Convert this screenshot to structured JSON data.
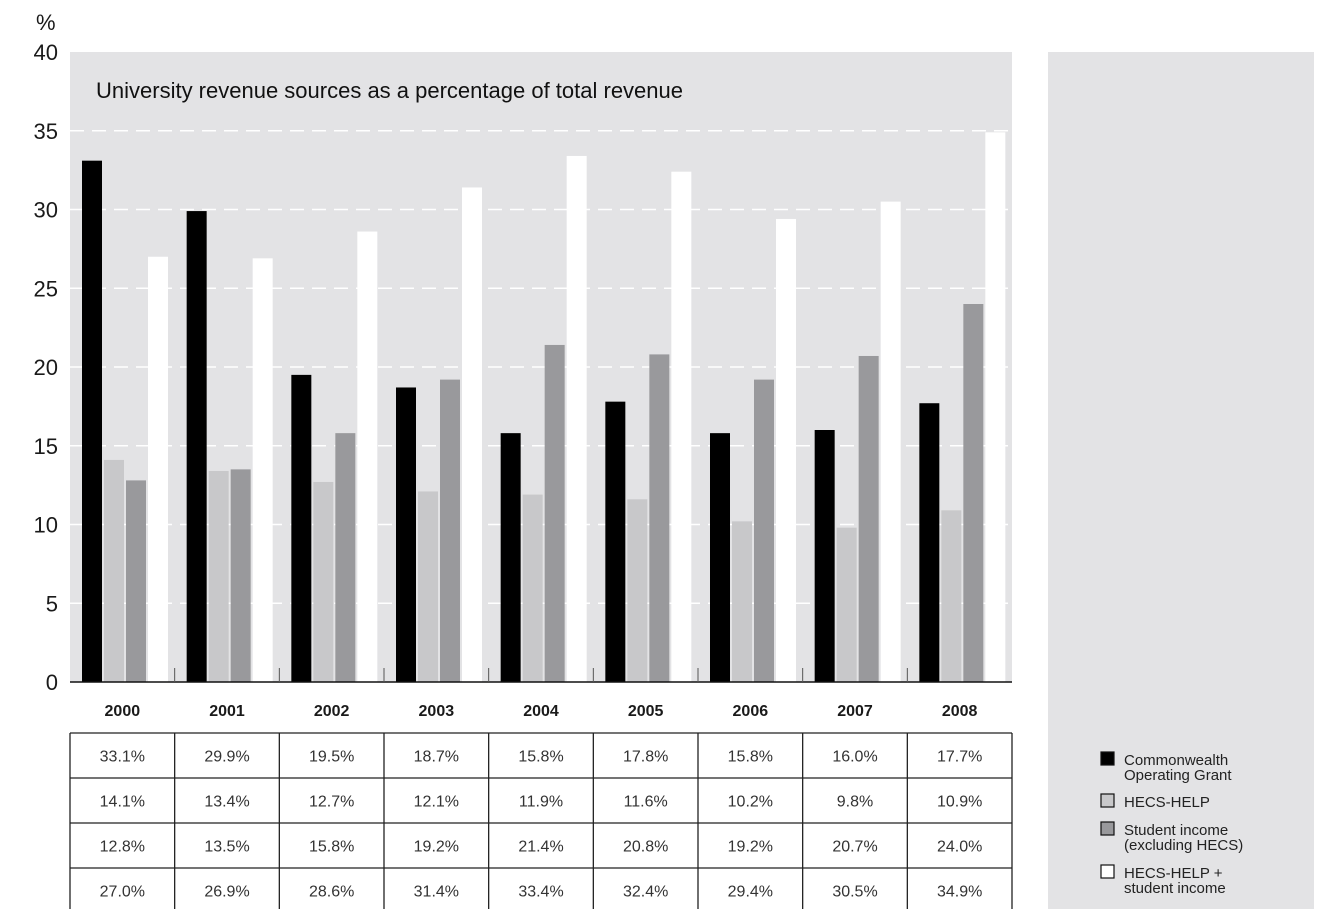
{
  "chart_data": {
    "type": "bar",
    "title": "University revenue sources as a percentage of total revenue",
    "ylabel": "%",
    "xlabel": "",
    "ylim": [
      0,
      40
    ],
    "yticks": [
      "0",
      "5",
      "10",
      "15",
      "20",
      "25",
      "30",
      "35",
      "40"
    ],
    "grid": true,
    "legend_placement": "bottom-right",
    "categories": [
      "2000",
      "2001",
      "2002",
      "2003",
      "2004",
      "2005",
      "2006",
      "2007",
      "2008"
    ],
    "series": [
      {
        "name": "Commonwealth Operating Grant",
        "name_lines": [
          "Commonwealth",
          "Operating Grant"
        ],
        "color": "#000000",
        "values": [
          33.1,
          29.9,
          19.5,
          18.7,
          15.8,
          17.8,
          15.8,
          16.0,
          17.7
        ],
        "labels": [
          "33.1%",
          "29.9%",
          "19.5%",
          "18.7%",
          "15.8%",
          "17.8%",
          "15.8%",
          "16.0%",
          "17.7%"
        ]
      },
      {
        "name": "HECS-HELP",
        "name_lines": [
          "HECS-HELP"
        ],
        "color": "#c8c8ca",
        "values": [
          14.1,
          13.4,
          12.7,
          12.1,
          11.9,
          11.6,
          10.2,
          9.8,
          10.9
        ],
        "labels": [
          "14.1%",
          "13.4%",
          "12.7%",
          "12.1%",
          "11.9%",
          "11.6%",
          "10.2%",
          "9.8%",
          "10.9%"
        ]
      },
      {
        "name": "Student income (excluding HECS)",
        "name_lines": [
          "Student income",
          "(excluding HECS)"
        ],
        "color": "#99999c",
        "values": [
          12.8,
          13.5,
          15.8,
          19.2,
          21.4,
          20.8,
          19.2,
          20.7,
          24.0
        ],
        "labels": [
          "12.8%",
          "13.5%",
          "15.8%",
          "19.2%",
          "21.4%",
          "20.8%",
          "19.2%",
          "20.7%",
          "24.0%"
        ]
      },
      {
        "name": "HECS-HELP + student income",
        "name_lines": [
          "HECS-HELP +",
          "student income"
        ],
        "color": "#ffffff",
        "values": [
          27.0,
          26.9,
          28.6,
          31.4,
          33.4,
          32.4,
          29.4,
          30.5,
          34.9
        ],
        "labels": [
          "27.0%",
          "26.9%",
          "28.6%",
          "31.4%",
          "33.4%",
          "32.4%",
          "29.4%",
          "30.5%",
          "34.9%"
        ]
      }
    ]
  }
}
